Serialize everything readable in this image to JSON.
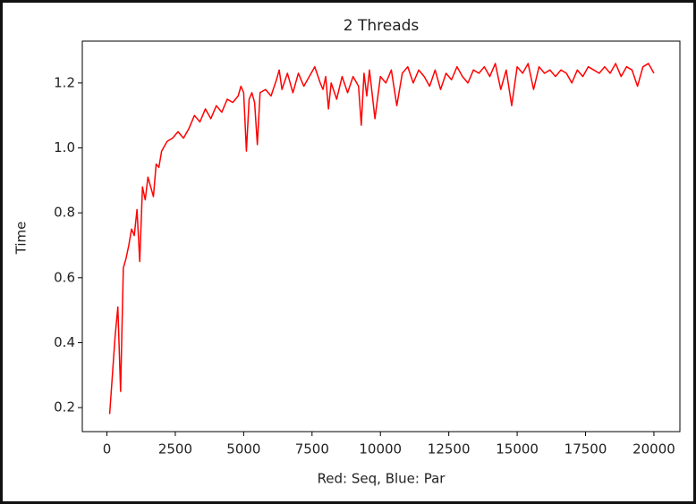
{
  "chart_data": {
    "type": "line",
    "title": "2 Threads",
    "x_label": "Red: Seq, Blue: Par",
    "y_label": "Time",
    "color": "#ff0000",
    "grid": false,
    "x": [
      100,
      200,
      300,
      400,
      500,
      600,
      700,
      800,
      900,
      1000,
      1100,
      1200,
      1300,
      1400,
      1500,
      1600,
      1700,
      1800,
      1900,
      2000,
      2200,
      2400,
      2600,
      2800,
      3000,
      3200,
      3400,
      3600,
      3800,
      4000,
      4200,
      4400,
      4600,
      4800,
      4900,
      5000,
      5100,
      5200,
      5300,
      5400,
      5500,
      5600,
      5800,
      6000,
      6200,
      6300,
      6400,
      6600,
      6800,
      7000,
      7200,
      7400,
      7600,
      7800,
      7900,
      8000,
      8100,
      8200,
      8400,
      8600,
      8800,
      9000,
      9200,
      9300,
      9400,
      9500,
      9600,
      9800,
      10000,
      10200,
      10400,
      10600,
      10800,
      11000,
      11200,
      11400,
      11600,
      11800,
      12000,
      12200,
      12400,
      12600,
      12800,
      13000,
      13200,
      13400,
      13600,
      13800,
      14000,
      14200,
      14400,
      14600,
      14800,
      15000,
      15200,
      15400,
      15600,
      15800,
      16000,
      16200,
      16400,
      16600,
      16800,
      17000,
      17200,
      17400,
      17600,
      17800,
      18000,
      18200,
      18400,
      18600,
      18800,
      19000,
      19200,
      19400,
      19600,
      19800,
      20000
    ],
    "values": [
      0.18,
      0.3,
      0.42,
      0.51,
      0.25,
      0.63,
      0.66,
      0.7,
      0.75,
      0.73,
      0.81,
      0.65,
      0.88,
      0.84,
      0.91,
      0.88,
      0.85,
      0.95,
      0.94,
      0.99,
      1.02,
      1.03,
      1.05,
      1.03,
      1.06,
      1.1,
      1.08,
      1.12,
      1.09,
      1.13,
      1.11,
      1.15,
      1.14,
      1.16,
      1.19,
      1.17,
      0.99,
      1.15,
      1.17,
      1.14,
      1.01,
      1.17,
      1.18,
      1.16,
      1.21,
      1.24,
      1.18,
      1.23,
      1.17,
      1.23,
      1.19,
      1.22,
      1.25,
      1.2,
      1.18,
      1.22,
      1.12,
      1.2,
      1.15,
      1.22,
      1.17,
      1.22,
      1.19,
      1.07,
      1.23,
      1.16,
      1.24,
      1.09,
      1.22,
      1.2,
      1.24,
      1.13,
      1.23,
      1.25,
      1.2,
      1.24,
      1.22,
      1.19,
      1.24,
      1.18,
      1.23,
      1.21,
      1.25,
      1.22,
      1.2,
      1.24,
      1.23,
      1.25,
      1.22,
      1.26,
      1.18,
      1.24,
      1.13,
      1.25,
      1.23,
      1.26,
      1.18,
      1.25,
      1.23,
      1.24,
      1.22,
      1.24,
      1.23,
      1.2,
      1.24,
      1.22,
      1.25,
      1.24,
      1.23,
      1.25,
      1.23,
      1.26,
      1.22,
      1.25,
      1.24,
      1.19,
      1.25,
      1.26,
      1.23
    ],
    "xlim": [
      -900,
      20950
    ],
    "ylim": [
      0.126,
      1.329
    ],
    "xticks": [
      0,
      2500,
      5000,
      7500,
      10000,
      12500,
      15000,
      17500,
      20000
    ],
    "yticks": [
      0.2,
      0.4,
      0.6,
      0.8,
      {
        "value": 1,
        "label": "1.0"
      },
      1.2
    ]
  }
}
